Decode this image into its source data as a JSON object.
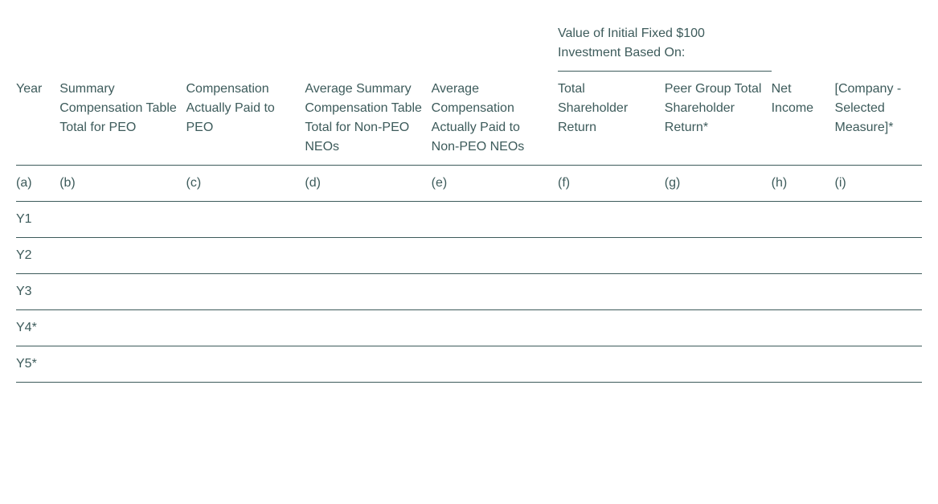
{
  "table": {
    "spanner": {
      "text": "Value of Initial Fixed $100 Investment Based On:",
      "covers": [
        "f",
        "g"
      ]
    },
    "columns": [
      {
        "key": "a",
        "header": "Year",
        "letter": "(a)",
        "class": "col-year"
      },
      {
        "key": "b",
        "header": "Summary Compensation Table Total for PEO",
        "letter": "(b)",
        "class": "col-b"
      },
      {
        "key": "c",
        "header": "Compensation Actually Paid to PEO",
        "letter": "(c)",
        "class": "col-c"
      },
      {
        "key": "d",
        "header": "Average Summary Compensation Table Total for Non-PEO NEOs",
        "letter": "(d)",
        "class": "col-d"
      },
      {
        "key": "e",
        "header": "Average Compensation Actually Paid to Non-PEO NEOs",
        "letter": "(e)",
        "class": "col-e"
      },
      {
        "key": "f",
        "header": "Total Shareholder Return",
        "letter": "(f)",
        "class": "col-f"
      },
      {
        "key": "g",
        "header": "Peer Group Total Shareholder Return*",
        "letter": "(g)",
        "class": "col-g"
      },
      {
        "key": "h",
        "header": "Net Income",
        "letter": "(h)",
        "class": "col-h"
      },
      {
        "key": "i",
        "header": "[Company - Selected Measure]*",
        "letter": "(i)",
        "class": "col-i"
      }
    ],
    "rows": [
      {
        "a": "Y1",
        "b": "",
        "c": "",
        "d": "",
        "e": "",
        "f": "",
        "g": "",
        "h": "",
        "i": ""
      },
      {
        "a": "Y2",
        "b": "",
        "c": "",
        "d": "",
        "e": "",
        "f": "",
        "g": "",
        "h": "",
        "i": ""
      },
      {
        "a": "Y3",
        "b": "",
        "c": "",
        "d": "",
        "e": "",
        "f": "",
        "g": "",
        "h": "",
        "i": ""
      },
      {
        "a": "Y4*",
        "b": "",
        "c": "",
        "d": "",
        "e": "",
        "f": "",
        "g": "",
        "h": "",
        "i": ""
      },
      {
        "a": "Y5*",
        "b": "",
        "c": "",
        "d": "",
        "e": "",
        "f": "",
        "g": "",
        "h": "",
        "i": ""
      }
    ],
    "colors": {
      "text": "#3d5b5b",
      "border": "#3d5b5b",
      "background": "#ffffff"
    },
    "font_size_pt": 12
  }
}
